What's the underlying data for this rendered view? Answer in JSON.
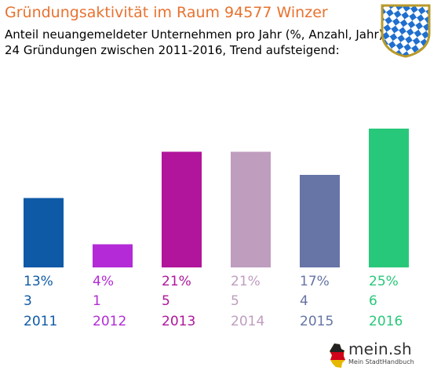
{
  "header": {
    "title": "Gründungsaktivität im Raum 94577 Winzer",
    "subtitle_line1": "Anteil neuangemeldeter Unternehmen pro Jahr (%, Anzahl, Jahr)",
    "subtitle_line2": "24 Gründungen zwischen 2011-2016, Trend aufsteigend:"
  },
  "brand": {
    "name": "mein.sh",
    "tagline": "Mein StadtHandbuch"
  },
  "chart_data": {
    "type": "bar",
    "categories": [
      "2011",
      "2012",
      "2013",
      "2014",
      "2015",
      "2016"
    ],
    "values": [
      3,
      1,
      5,
      5,
      4,
      6
    ],
    "percent_labels": [
      "13%",
      "4%",
      "21%",
      "21%",
      "17%",
      "25%"
    ],
    "count_labels": [
      "3",
      "1",
      "5",
      "5",
      "4",
      "6"
    ],
    "colors": [
      "#0f5aa6",
      "#b32ad6",
      "#b0159b",
      "#bf9dbf",
      "#6674a6",
      "#28c87a"
    ],
    "ylim": [
      0,
      6
    ],
    "grid": false,
    "title": "Gründungsaktivität im Raum 94577 Winzer",
    "xlabel": "",
    "ylabel": ""
  }
}
